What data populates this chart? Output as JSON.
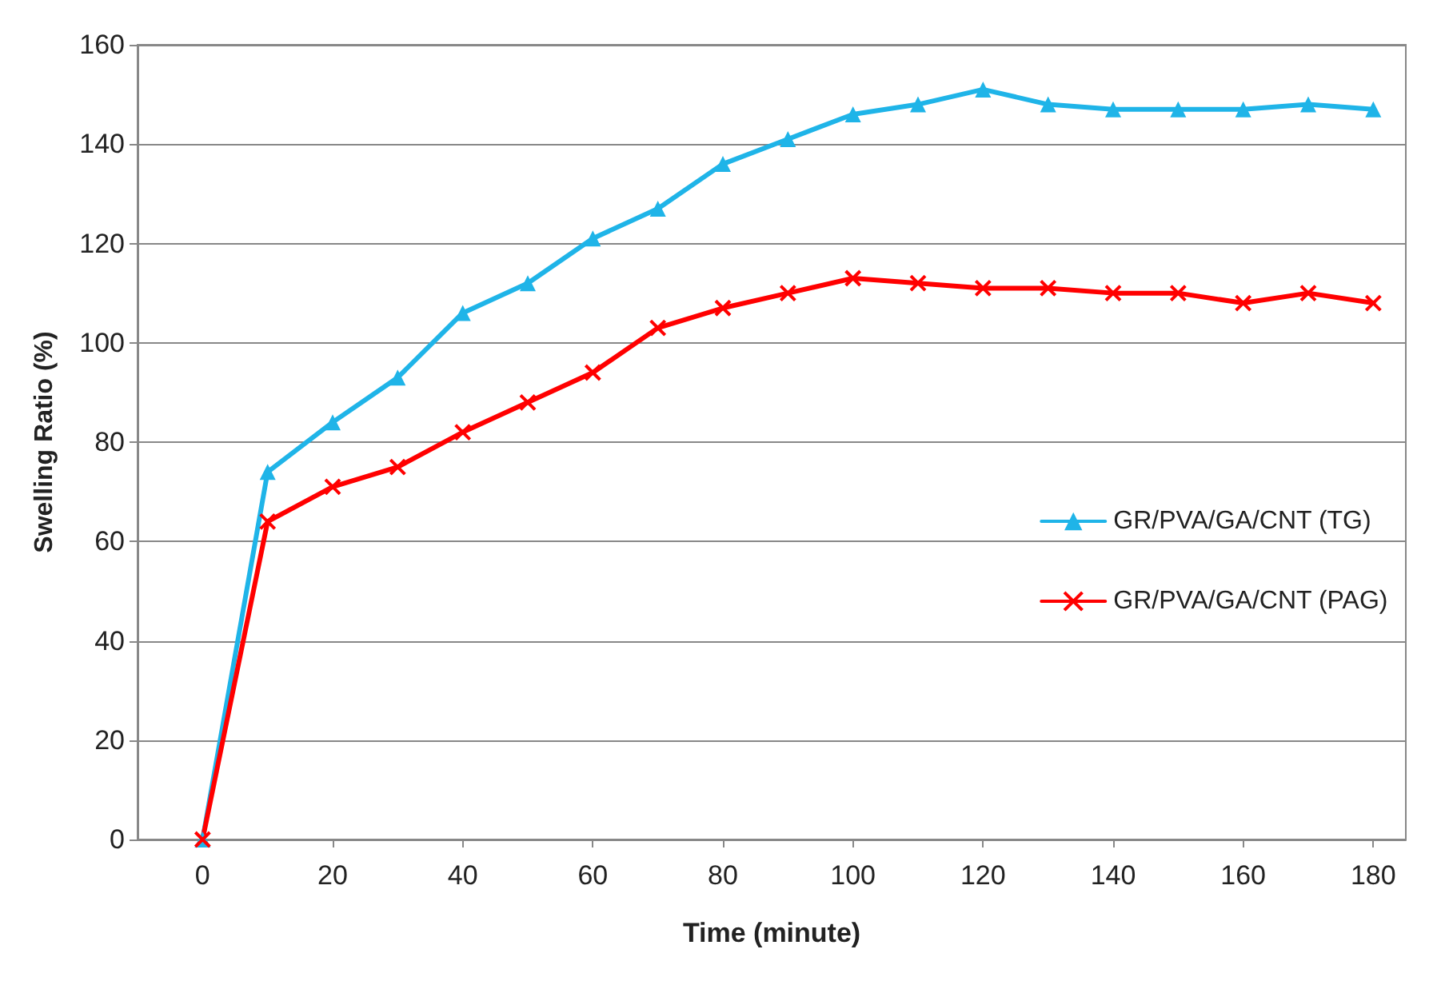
{
  "chart_data": {
    "type": "line",
    "xlabel": "Time (minute)",
    "ylabel": "Swelling Ratio (%)",
    "x": [
      0,
      10,
      20,
      30,
      40,
      50,
      60,
      70,
      80,
      90,
      100,
      110,
      120,
      130,
      140,
      150,
      160,
      170,
      180
    ],
    "series": [
      {
        "name": "GR/PVA/GA/CNT (TG)",
        "color": "#1fb4e8",
        "marker": "triangle",
        "values": [
          0,
          74,
          84,
          93,
          106,
          112,
          121,
          127,
          136,
          141,
          146,
          148,
          151,
          148,
          147,
          147,
          147,
          148,
          147
        ]
      },
      {
        "name": "GR/PVA/GA/CNT (PAG)",
        "color": "#ff0000",
        "marker": "cross",
        "values": [
          0,
          64,
          71,
          75,
          82,
          88,
          94,
          103,
          107,
          110,
          113,
          112,
          111,
          111,
          110,
          110,
          108,
          110,
          108
        ]
      }
    ],
    "xlim": [
      -10,
      185
    ],
    "xticks": [
      0,
      20,
      40,
      60,
      80,
      100,
      120,
      140,
      160,
      180
    ],
    "ylim": [
      0,
      160
    ],
    "yticks": [
      0,
      20,
      40,
      60,
      80,
      100,
      120,
      140,
      160
    ],
    "grid": "y",
    "legend": "right",
    "line_style": "solid"
  }
}
